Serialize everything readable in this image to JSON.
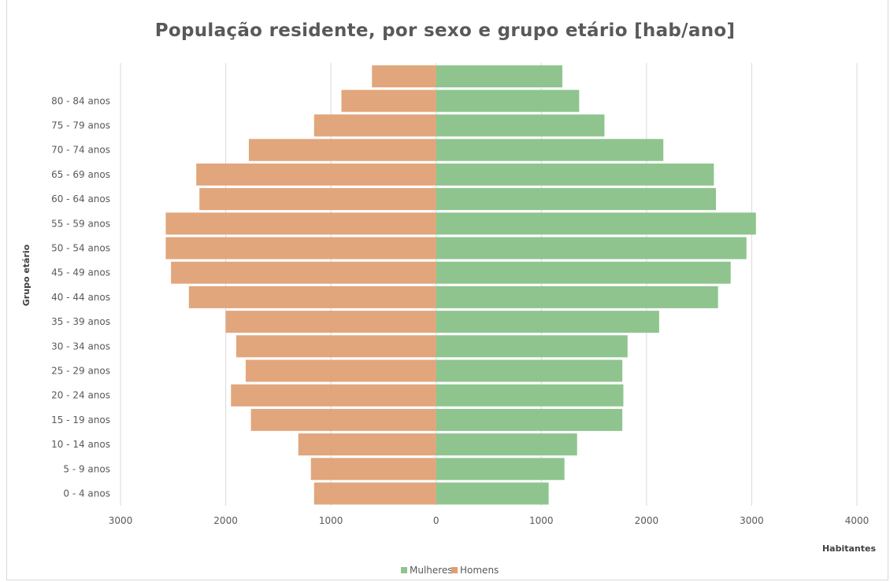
{
  "chart_data": {
    "type": "bar",
    "orientation": "horizontal",
    "title": "População residente, por sexo e grupo etário [hab/ano]",
    "xlabel": "Habitantes",
    "ylabel": "Grupo etário",
    "categories": [
      "",
      "80 - 84 anos",
      "75 - 79 anos",
      "70 - 74 anos",
      "65 - 69 anos",
      "60 - 64 anos",
      "55 - 59 anos",
      "50 - 54 anos",
      "45 - 49 anos",
      "40 - 44 anos",
      "35 - 39 anos",
      "30 - 34 anos",
      "25 - 29 anos",
      "20 - 24 anos",
      "15 - 19 anos",
      "10 - 14 anos",
      "5 - 9 anos",
      "0 - 4 anos"
    ],
    "series": [
      {
        "name": "Mulheres",
        "color": "#8fc48f",
        "values": [
          1200,
          1360,
          1600,
          2160,
          2640,
          2660,
          3040,
          2950,
          2800,
          2680,
          2120,
          1820,
          1770,
          1780,
          1770,
          1340,
          1220,
          1070
        ]
      },
      {
        "name": "Homens",
        "color": "#df9f72",
        "values": [
          610,
          900,
          1160,
          1780,
          2280,
          2250,
          2570,
          2570,
          2520,
          2350,
          2000,
          1900,
          1810,
          1950,
          1760,
          1310,
          1190,
          1160
        ]
      }
    ],
    "xlim": [
      -3000,
      4000
    ],
    "xticks": [
      -3000,
      -2000,
      -1000,
      0,
      1000,
      2000,
      3000,
      4000
    ],
    "xtick_labels": [
      "3000",
      "2000",
      "1000",
      "0",
      "1000",
      "2000",
      "3000",
      "4000"
    ],
    "grid": true,
    "legend_position": "bottom"
  }
}
